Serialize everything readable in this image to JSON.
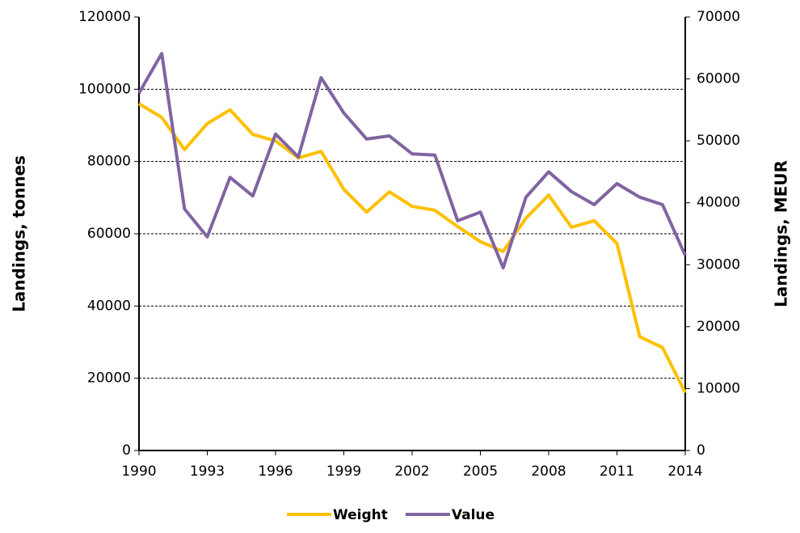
{
  "chart_data": {
    "type": "line",
    "x": [
      1990,
      1991,
      1992,
      1993,
      1994,
      1995,
      1996,
      1997,
      1998,
      1999,
      2000,
      2001,
      2002,
      2003,
      2004,
      2005,
      2006,
      2007,
      2008,
      2009,
      2010,
      2011,
      2012,
      2013,
      2014
    ],
    "xlim": [
      1990,
      2014
    ],
    "xticks": [
      1990,
      1993,
      1996,
      1999,
      2002,
      2005,
      2008,
      2011,
      2014
    ],
    "y_label": "Landings, tonnes",
    "y2_label": "Landings, MEUR",
    "ylim": [
      0,
      120000
    ],
    "yticks": [
      0,
      20000,
      40000,
      60000,
      80000,
      100000,
      120000
    ],
    "y2lim": [
      0,
      70000
    ],
    "y2ticks": [
      0,
      10000,
      20000,
      30000,
      40000,
      50000,
      60000,
      70000
    ],
    "grid": true,
    "legend": "bottom",
    "series": [
      {
        "name": "Weight",
        "color": "#ffc000",
        "values": [
          96000,
          92200,
          83300,
          90500,
          94300,
          87500,
          85700,
          81000,
          82800,
          72300,
          66000,
          71600,
          67600,
          66500,
          62000,
          57800,
          55100,
          64300,
          70700,
          61800,
          63600,
          57300,
          31500,
          28500,
          16000
        ]
      },
      {
        "name": "Value",
        "color": "#8064a2",
        "axis": "y2",
        "values": [
          57700,
          64100,
          39000,
          34500,
          44100,
          41100,
          51100,
          47400,
          60200,
          54500,
          50300,
          50800,
          47900,
          47700,
          37100,
          38500,
          29500,
          40900,
          45000,
          41800,
          39700,
          43100,
          40900,
          39700,
          31500
        ]
      }
    ]
  }
}
